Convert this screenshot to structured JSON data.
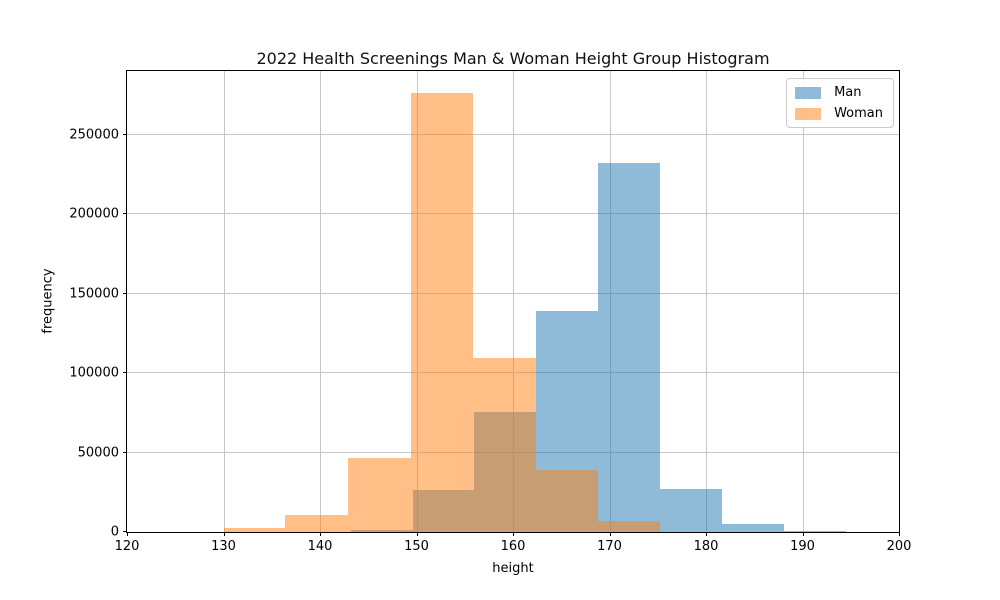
{
  "chart_data": {
    "type": "histogram",
    "title": "2022 Health Screenings Man & Woman Height Group Histogram",
    "xlabel": "height",
    "ylabel": "frequency",
    "xlim": [
      120,
      200
    ],
    "ylim": [
      0,
      290100
    ],
    "x_ticks": [
      120,
      130,
      140,
      150,
      160,
      170,
      180,
      190,
      200
    ],
    "y_ticks": [
      0,
      50000,
      100000,
      150000,
      200000,
      250000
    ],
    "grid": true,
    "grid_color": "#c6c6c6",
    "legend": {
      "position": "upper right",
      "entries": [
        {
          "label": "Man",
          "color": "#1f77b4"
        },
        {
          "label": "Woman",
          "color": "#ff7f0e"
        }
      ]
    },
    "series": [
      {
        "name": "Man",
        "color": "#1f77b4",
        "alpha": 0.5,
        "bin_edges": [
          143.2,
          149.6,
          156.0,
          162.4,
          168.8,
          175.2,
          181.7,
          188.1,
          194.5
        ],
        "counts": [
          1200,
          26500,
          75500,
          139000,
          232000,
          27000,
          5000,
          600
        ]
      },
      {
        "name": "Woman",
        "color": "#ff7f0e",
        "alpha": 0.5,
        "bin_edges": [
          130.0,
          136.4,
          142.9,
          149.4,
          155.9,
          162.4,
          168.8,
          175.2
        ],
        "counts": [
          2500,
          11000,
          46500,
          276500,
          109500,
          39000,
          7000
        ]
      }
    ]
  }
}
